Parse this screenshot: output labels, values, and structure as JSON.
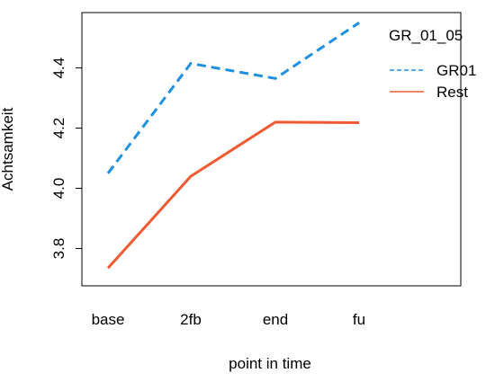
{
  "chart_data": {
    "type": "line",
    "categories": [
      "base",
      "2fb",
      "end",
      "fu"
    ],
    "xlabel": "point in time",
    "ylabel": "Achtsamkeit",
    "ylim": [
      3.7,
      4.56
    ],
    "yticks": [
      3.8,
      4.0,
      4.2,
      4.4
    ],
    "grid": false,
    "legend": {
      "title": "GR_01_05",
      "position": "top-right"
    },
    "series": [
      {
        "name": "GR01",
        "color": "#1e90e0",
        "dash": "dashed",
        "values": [
          4.05,
          4.415,
          4.365,
          4.55
        ]
      },
      {
        "name": "Rest",
        "color": "#f05a32",
        "dash": "solid",
        "values": [
          3.735,
          4.04,
          4.22,
          4.218
        ]
      }
    ]
  }
}
